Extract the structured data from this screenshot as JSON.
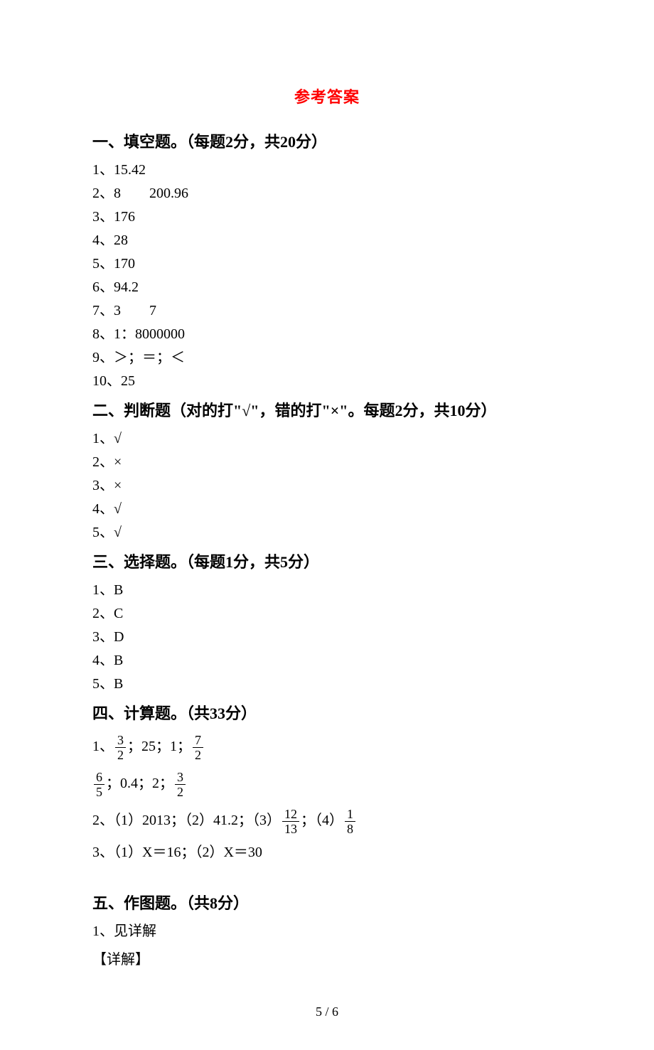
{
  "title": {
    "text": "参考答案",
    "color": "#ff0000"
  },
  "section1": {
    "header": "一、填空题。（每题2分，共20分）",
    "answers": [
      "1、15.42",
      "2、8  200.96",
      "3、176",
      "4、28",
      "5、170",
      "6、94.2",
      "7、3  7",
      "8、1：8000000",
      "9、＞；＝；＜",
      "10、25"
    ]
  },
  "section2": {
    "header": "二、判断题（对的打\"√\"，错的打\"×\"。每题2分，共10分）",
    "answers": [
      "1、√",
      "2、×",
      "3、×",
      "4、√",
      "5、√"
    ]
  },
  "section3": {
    "header": "三、选择题。（每题1分，共5分）",
    "answers": [
      "1、B",
      "2、C",
      "3、D",
      "4、B",
      "5、B"
    ]
  },
  "section4": {
    "header": "四、计算题。（共33分）",
    "line1a": {
      "prefix": "1、",
      "f1_num": "3",
      "f1_den": "2",
      "mid1": "；25；1；",
      "f2_num": "7",
      "f2_den": "2"
    },
    "line1b": {
      "f1_num": "6",
      "f1_den": "5",
      "mid1": "；0.4；2；",
      "f2_num": "3",
      "f2_den": "2"
    },
    "line2": {
      "prefix": "2、（1）2013；（2）41.2；（3）",
      "f1_num": "12",
      "f1_den": "13",
      "mid": "；（4）",
      "f2_num": "1",
      "f2_den": "8"
    },
    "line3": "3、（1）X＝16；（2）X＝30"
  },
  "section5": {
    "header": "五、作图题。（共8分）",
    "answer": "1、见详解",
    "detail": "【详解】"
  },
  "pageNum": "5 / 6"
}
